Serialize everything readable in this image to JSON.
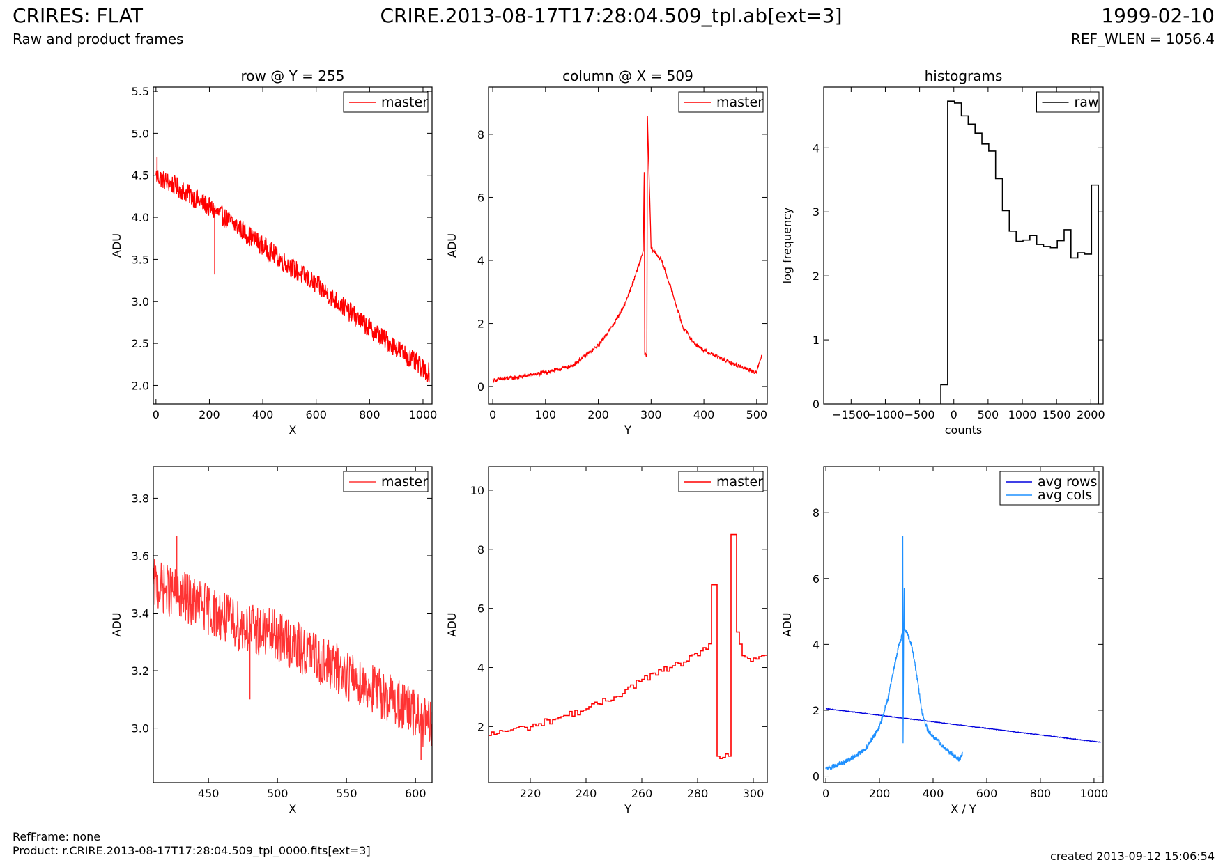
{
  "header": {
    "left_title": "CRIRES: FLAT",
    "left_subtitle": "Raw and product frames",
    "center_title": "CRIRE.2013-08-17T17:28:04.509_tpl.ab[ext=3]",
    "right_date": "1999-02-10",
    "right_ref": "REF_WLEN = 1056.4"
  },
  "footer": {
    "refframe": "RefFrame: none",
    "product": "Product: r.CRIRE.2013-08-17T17:28:04.509_tpl_0000.fits[ext=3]",
    "created": "created 2013-09-12 15:06:54"
  },
  "colors": {
    "master": "#ff0000",
    "master_zoom": "#ff3333",
    "raw": "#000000",
    "avg_rows": "#0000dd",
    "avg_cols": "#1e90ff"
  },
  "chart_data": [
    {
      "id": "row",
      "type": "line",
      "title": "row @ Y = 255",
      "xlabel": "X",
      "ylabel": "ADU",
      "xlim": [
        -10,
        1034
      ],
      "ylim": [
        1.78,
        5.55
      ],
      "xticks": [
        0,
        200,
        400,
        600,
        800,
        1000
      ],
      "yticks": [
        2.0,
        2.5,
        3.0,
        3.5,
        4.0,
        4.5,
        5.0,
        5.5
      ],
      "ytick_decimals": 1,
      "legend": "top-right",
      "series": [
        {
          "name": "master",
          "color": "#ff0000",
          "style": "noisy",
          "x": [
            0,
            100,
            200,
            300,
            400,
            500,
            600,
            700,
            800,
            900,
            1000,
            1023
          ],
          "values": [
            4.5,
            4.32,
            4.12,
            3.9,
            3.66,
            3.42,
            3.2,
            2.94,
            2.68,
            2.45,
            2.2,
            2.15
          ],
          "noise": 0.12,
          "spikes": [
            {
              "x": 220,
              "y": 3.32
            },
            {
              "x": 4,
              "y": 4.72
            }
          ]
        }
      ]
    },
    {
      "id": "column",
      "type": "line",
      "title": "column @ X = 509",
      "xlabel": "Y",
      "ylabel": "ADU",
      "xlim": [
        -8,
        520
      ],
      "ylim": [
        -0.55,
        9.5
      ],
      "xticks": [
        0,
        100,
        200,
        300,
        400,
        500
      ],
      "yticks": [
        0,
        2,
        4,
        6,
        8
      ],
      "ytick_decimals": 0,
      "legend": "top-right",
      "series": [
        {
          "name": "master",
          "color": "#ff0000",
          "style": "noisy",
          "x": [
            0,
            50,
            100,
            150,
            200,
            230,
            250,
            270,
            285,
            287,
            288,
            292,
            293,
            300,
            320,
            340,
            360,
            380,
            400,
            450,
            500,
            509
          ],
          "values": [
            0.2,
            0.3,
            0.45,
            0.65,
            1.3,
            2.0,
            2.6,
            3.5,
            4.3,
            6.8,
            1.0,
            1.0,
            8.55,
            4.4,
            4.0,
            3.0,
            1.9,
            1.4,
            1.15,
            0.75,
            0.45,
            1.0
          ],
          "noise": 0.06,
          "spikes": []
        }
      ]
    },
    {
      "id": "histograms",
      "type": "step",
      "title": "histograms",
      "xlabel": "counts",
      "ylabel": "log frequency",
      "xlim": [
        -1900,
        2180
      ],
      "ylim": [
        0,
        4.95
      ],
      "xticks": [
        -1500,
        -1000,
        -500,
        0,
        500,
        1000,
        1500,
        2000
      ],
      "yticks": [
        0,
        1,
        2,
        3,
        4
      ],
      "ytick_decimals": 0,
      "legend": "top-right",
      "series": [
        {
          "name": "raw",
          "color": "#000000",
          "edges": [
            -190,
            -90,
            10,
            110,
            210,
            310,
            410,
            510,
            610,
            710,
            810,
            910,
            1010,
            1110,
            1210,
            1310,
            1410,
            1510,
            1610,
            1710,
            1810,
            1910,
            2010,
            2110
          ],
          "values": [
            0.3,
            4.73,
            4.7,
            4.5,
            4.37,
            4.23,
            4.06,
            3.95,
            3.52,
            3.02,
            2.7,
            2.54,
            2.56,
            2.63,
            2.49,
            2.46,
            2.44,
            2.55,
            2.72,
            2.28,
            2.36,
            2.34,
            3.42
          ]
        }
      ]
    },
    {
      "id": "row-zoom",
      "type": "line",
      "title": "",
      "xlabel": "X",
      "ylabel": "ADU",
      "xlim": [
        410,
        612
      ],
      "ylim": [
        2.81,
        3.91
      ],
      "xticks": [
        450,
        500,
        550,
        600
      ],
      "yticks": [
        3.0,
        3.2,
        3.4,
        3.6,
        3.8
      ],
      "ytick_decimals": 1,
      "legend": "top-right",
      "series": [
        {
          "name": "master",
          "color": "#ff3333",
          "style": "noisy",
          "x": [
            410,
            440,
            470,
            500,
            530,
            560,
            590,
            612
          ],
          "values": [
            3.5,
            3.44,
            3.36,
            3.32,
            3.24,
            3.16,
            3.08,
            3.0
          ],
          "noise": 0.09,
          "spikes": [
            {
              "x": 427,
              "y": 3.67
            },
            {
              "x": 480,
              "y": 3.1
            },
            {
              "x": 604,
              "y": 2.89
            }
          ]
        }
      ]
    },
    {
      "id": "column-zoom",
      "type": "line",
      "title": "",
      "xlabel": "Y",
      "ylabel": "ADU",
      "xlim": [
        205,
        305
      ],
      "ylim": [
        0.1,
        10.8
      ],
      "xticks": [
        220,
        240,
        260,
        280,
        300
      ],
      "yticks": [
        2,
        4,
        6,
        8,
        10
      ],
      "ytick_decimals": 0,
      "legend": "top-right",
      "series": [
        {
          "name": "master",
          "color": "#ff0000",
          "style": "step",
          "x": [
            205,
            210,
            220,
            230,
            240,
            250,
            260,
            270,
            280,
            284,
            285,
            286,
            287,
            291,
            292,
            293,
            294,
            296,
            298,
            305
          ],
          "values": [
            1.7,
            1.85,
            2.0,
            2.3,
            2.6,
            3.0,
            3.6,
            4.0,
            4.4,
            4.8,
            6.8,
            6.8,
            1.0,
            1.0,
            8.5,
            8.5,
            5.2,
            4.4,
            4.3,
            4.3
          ],
          "noise": 0.12,
          "spikes": []
        }
      ]
    },
    {
      "id": "averages",
      "type": "line",
      "title": "",
      "xlabel": "X / Y",
      "ylabel": "ADU",
      "xlim": [
        -8,
        1034
      ],
      "ylim": [
        -0.2,
        9.4
      ],
      "xticks": [
        0,
        200,
        400,
        600,
        800,
        1000
      ],
      "yticks": [
        0,
        2,
        4,
        6,
        8
      ],
      "ytick_decimals": 0,
      "legend": "top-right",
      "series": [
        {
          "name": "avg rows",
          "color": "#0000dd",
          "style": "noisy",
          "x": [
            0,
            1023
          ],
          "values": [
            2.05,
            1.03
          ],
          "noise": 0.01,
          "spikes": []
        },
        {
          "name": "avg cols",
          "color": "#1e90ff",
          "style": "noisy",
          "x": [
            0,
            50,
            100,
            150,
            200,
            230,
            250,
            270,
            285,
            287,
            288,
            290,
            292,
            293,
            300,
            320,
            340,
            360,
            380,
            400,
            450,
            500,
            509
          ],
          "values": [
            0.22,
            0.35,
            0.55,
            0.85,
            1.5,
            2.3,
            3.1,
            3.9,
            4.3,
            7.3,
            1.0,
            4.0,
            5.7,
            4.5,
            4.4,
            4.0,
            3.0,
            1.9,
            1.4,
            1.2,
            0.8,
            0.5,
            0.7
          ],
          "noise": 0.07,
          "spikes": []
        }
      ]
    }
  ]
}
